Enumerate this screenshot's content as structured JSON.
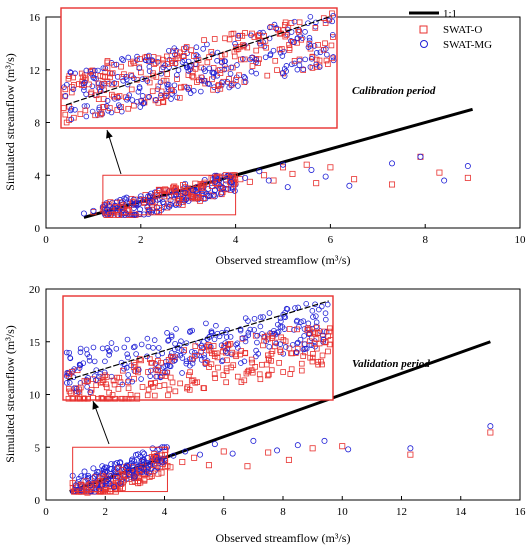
{
  "chart_data": [
    {
      "type": "scatter",
      "xlabel": "Observed streamflow (m³/s)",
      "ylabel": "Simulated streamflow (m³/s)",
      "xlim": [
        0,
        10
      ],
      "ylim": [
        0,
        16
      ],
      "xticks": [
        "0",
        "2",
        "4",
        "6",
        "8",
        "10"
      ],
      "yticks": [
        "0",
        "4",
        "8",
        "12",
        "16"
      ],
      "annotation": "Calibration period",
      "legend": {
        "placement": "top-right",
        "entries": [
          "1:1",
          "SWAT-O",
          "SWAT-MG"
        ]
      },
      "one_to_one_line": {
        "x": [
          0.8,
          9.0
        ],
        "y": [
          0.8,
          9.0
        ]
      },
      "zoom_box": {
        "x": [
          1.2,
          4.0
        ],
        "y": [
          1.0,
          4.0
        ]
      },
      "colors": {
        "line": "#000000",
        "swat_o": "#e8312f",
        "swat_mg": "#1f1fd6",
        "zoom": "#e8312f"
      },
      "series": [
        {
          "name": "SWAT-O",
          "marker": "square",
          "x": [
            1.0,
            1.2,
            1.4,
            1.5,
            1.6,
            1.8,
            1.9,
            2.0,
            2.1,
            2.2,
            2.3,
            2.5,
            2.6,
            2.7,
            2.8,
            3.0,
            3.1,
            3.2,
            3.3,
            3.5,
            3.6,
            3.8,
            3.9,
            4.1,
            4.3,
            4.6,
            4.8,
            5.0,
            5.2,
            5.5,
            5.7,
            6.0,
            6.5,
            7.3,
            7.9,
            8.3,
            8.9
          ],
          "y": [
            1.2,
            1.4,
            1.3,
            1.9,
            1.6,
            2.2,
            1.8,
            2.1,
            2.5,
            2.3,
            2.0,
            2.6,
            2.4,
            2.8,
            2.2,
            3.0,
            2.6,
            3.1,
            2.9,
            3.2,
            3.4,
            3.3,
            2.9,
            3.7,
            3.5,
            4.0,
            3.6,
            4.6,
            4.1,
            4.8,
            3.4,
            4.6,
            3.7,
            3.3,
            5.4,
            4.2,
            3.8
          ]
        },
        {
          "name": "SWAT-MG",
          "marker": "circle",
          "x": [
            0.8,
            1.0,
            1.2,
            1.3,
            1.5,
            1.6,
            1.7,
            1.9,
            2.0,
            2.2,
            2.3,
            2.4,
            2.6,
            2.7,
            2.9,
            3.0,
            3.2,
            3.3,
            3.5,
            3.7,
            3.8,
            4.0,
            4.2,
            4.5,
            4.7,
            5.0,
            5.1,
            5.6,
            5.9,
            6.4,
            7.3,
            7.9,
            8.4,
            8.9
          ],
          "y": [
            1.1,
            1.3,
            1.6,
            1.2,
            2.0,
            1.5,
            2.3,
            1.9,
            2.4,
            2.0,
            2.7,
            2.2,
            2.8,
            2.5,
            3.0,
            2.7,
            3.1,
            2.8,
            3.4,
            3.0,
            3.6,
            3.3,
            3.8,
            4.3,
            3.6,
            4.8,
            3.1,
            4.4,
            3.9,
            3.2,
            4.9,
            5.4,
            3.6,
            4.7
          ]
        }
      ]
    },
    {
      "type": "scatter",
      "xlabel": "Observed streamflow (m³/s)",
      "ylabel": "Simulated streamflow (m³/s)",
      "xlim": [
        0,
        16
      ],
      "ylim": [
        0,
        20
      ],
      "xticks": [
        "0",
        "2",
        "4",
        "6",
        "8",
        "10",
        "12",
        "14",
        "16"
      ],
      "yticks": [
        "0",
        "5",
        "10",
        "15",
        "20"
      ],
      "annotation": "Validation period",
      "one_to_one_line": {
        "x": [
          0.8,
          15.0
        ],
        "y": [
          0.8,
          15.0
        ]
      },
      "zoom_box": {
        "x": [
          0.9,
          4.1
        ],
        "y": [
          0.8,
          5.0
        ]
      },
      "colors": {
        "line": "#000000",
        "swat_o": "#e8312f",
        "swat_mg": "#1f1fd6",
        "zoom": "#e8312f"
      },
      "series": [
        {
          "name": "SWAT-O",
          "marker": "square",
          "x": [
            0.9,
            1.0,
            1.2,
            1.4,
            1.5,
            1.7,
            1.8,
            2.0,
            2.1,
            2.3,
            2.4,
            2.6,
            2.8,
            3.0,
            3.1,
            3.3,
            3.5,
            3.7,
            3.9,
            4.2,
            4.6,
            5.0,
            5.5,
            6.0,
            6.8,
            7.5,
            8.2,
            9.0,
            10.0,
            12.3,
            15.0
          ],
          "y": [
            1.6,
            0.9,
            1.2,
            0.7,
            1.5,
            1.0,
            1.8,
            1.2,
            2.0,
            1.4,
            2.3,
            1.7,
            2.0,
            2.4,
            1.8,
            2.7,
            2.2,
            3.0,
            2.6,
            3.1,
            3.6,
            4.0,
            3.3,
            4.6,
            3.2,
            4.5,
            3.8,
            4.9,
            5.1,
            4.3,
            6.4
          ]
        },
        {
          "name": "SWAT-MG",
          "marker": "circle",
          "x": [
            0.9,
            1.1,
            1.3,
            1.4,
            1.6,
            1.7,
            1.9,
            2.0,
            2.2,
            2.3,
            2.5,
            2.7,
            2.9,
            3.1,
            3.3,
            3.5,
            3.7,
            3.9,
            4.3,
            4.7,
            5.2,
            5.7,
            6.3,
            7.0,
            7.8,
            8.5,
            9.4,
            10.2,
            12.3,
            15.0
          ],
          "y": [
            2.3,
            1.7,
            2.7,
            2.0,
            3.0,
            2.4,
            3.2,
            2.6,
            3.4,
            2.8,
            3.5,
            3.0,
            3.7,
            3.2,
            3.8,
            3.4,
            4.0,
            3.6,
            4.2,
            4.6,
            4.3,
            5.3,
            4.4,
            5.6,
            4.7,
            5.2,
            5.6,
            4.8,
            4.9,
            7.0
          ]
        }
      ]
    }
  ]
}
